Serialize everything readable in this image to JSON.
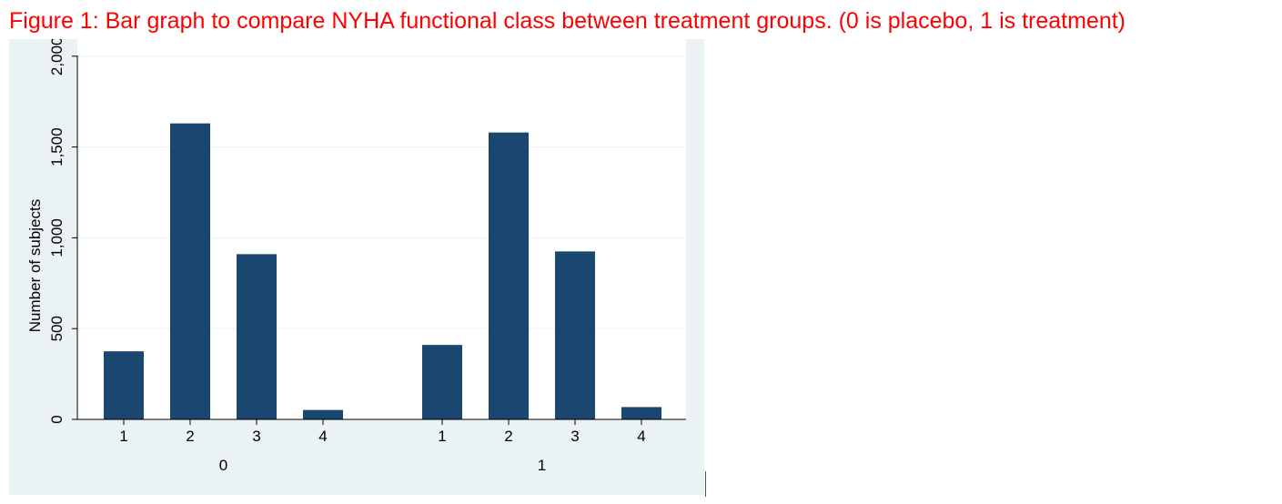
{
  "caption": "Figure 1: Bar graph to compare NYHA functional class between treatment groups. (0 is placebo, 1 is treatment)",
  "colors": {
    "caption": "#ff0000",
    "panel_background": "#eaf2f3",
    "plot_background": "#ffffff",
    "bar": "#1a476f",
    "gridline": "#eaf2f3",
    "axis": "#000000"
  },
  "chart_data": {
    "type": "bar",
    "ylabel": "Number of subjects",
    "xlabel": "",
    "ylim": [
      0,
      2000
    ],
    "yticks": [
      0,
      500,
      1000,
      1500,
      2000
    ],
    "ytick_labels": [
      "0",
      "500",
      "1,000",
      "1,500",
      "2,000"
    ],
    "grid": "horizontal",
    "legend": "none",
    "groups": [
      {
        "label": "0",
        "categories": [
          "1",
          "2",
          "3",
          "4"
        ],
        "values": [
          375,
          1630,
          910,
          52
        ]
      },
      {
        "label": "1",
        "categories": [
          "1",
          "2",
          "3",
          "4"
        ],
        "values": [
          410,
          1580,
          925,
          68
        ]
      }
    ]
  }
}
